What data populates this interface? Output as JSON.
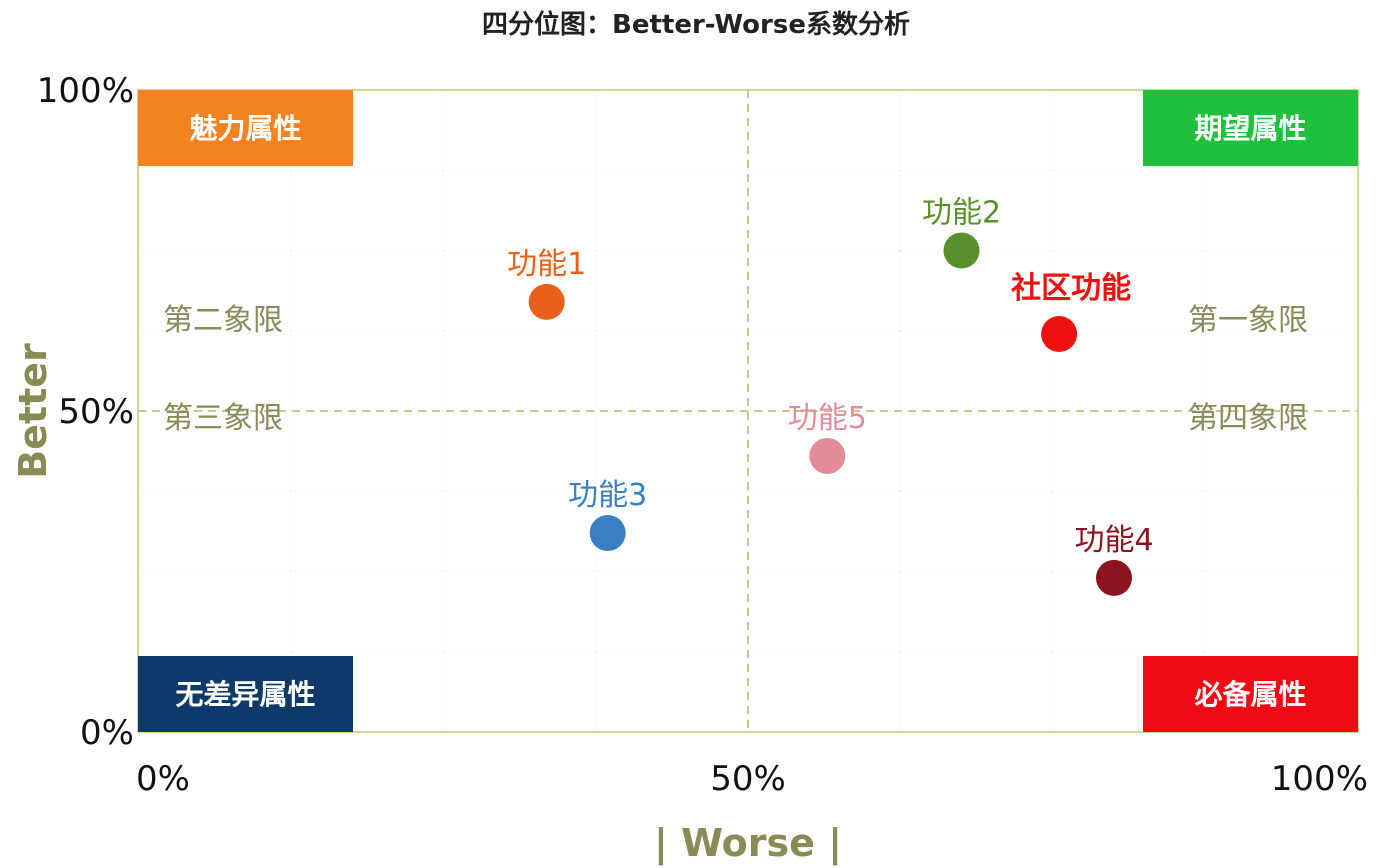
{
  "chart_data": {
    "type": "scatter",
    "title": "四分位图：Better-Worse系数分析",
    "xlabel": "| Worse |",
    "ylabel": "Better",
    "xlim": [
      0,
      100
    ],
    "ylim": [
      0,
      100
    ],
    "x_ticks": [
      "0%",
      "50%",
      "100%"
    ],
    "y_ticks": [
      "0%",
      "50%",
      "100%"
    ],
    "grid": true,
    "divider_x": 50,
    "divider_y": 50,
    "points": [
      {
        "label": "功能1",
        "x": 33.5,
        "y": 67,
        "color": "#e8601a",
        "bold": false
      },
      {
        "label": "功能2",
        "x": 67.5,
        "y": 75,
        "color": "#5a8f2e",
        "bold": false
      },
      {
        "label": "社区功能",
        "x": 75.5,
        "y": 62,
        "color": "#f01010",
        "bold": true
      },
      {
        "label": "功能3",
        "x": 38.5,
        "y": 31,
        "color": "#3a7fc4",
        "bold": false
      },
      {
        "label": "功能5",
        "x": 56.5,
        "y": 43,
        "color": "#e38b96",
        "bold": false
      },
      {
        "label": "功能4",
        "x": 80,
        "y": 24,
        "color": "#8b1420",
        "bold": false
      }
    ],
    "quadrant_labels": [
      {
        "text": "第一象限",
        "position": "upper-right"
      },
      {
        "text": "第二象限",
        "position": "upper-left"
      },
      {
        "text": "第三象限",
        "position": "lower-left"
      },
      {
        "text": "第四象限",
        "position": "lower-right"
      }
    ],
    "corner_boxes": [
      {
        "text": "魅力属性",
        "position": "top-left",
        "color": "#f58220"
      },
      {
        "text": "期望属性",
        "position": "top-right",
        "color": "#1ec03c"
      },
      {
        "text": "无差异属性",
        "position": "bottom-left",
        "color": "#0d3a6b"
      },
      {
        "text": "必备属性",
        "position": "bottom-right",
        "color": "#f00a14"
      }
    ]
  }
}
